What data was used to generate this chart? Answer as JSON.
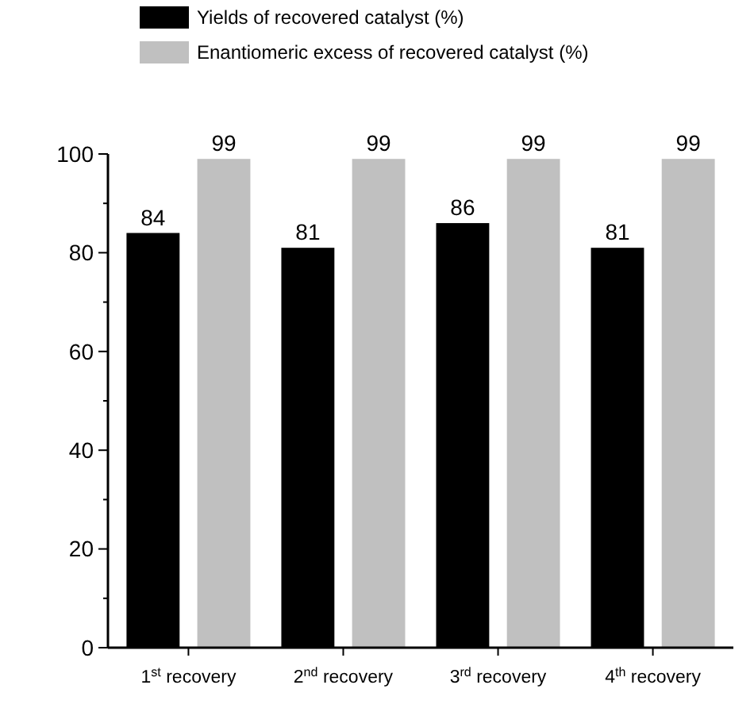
{
  "chart_data": {
    "type": "bar",
    "categories": [
      "1$^{st}$ recovery",
      "2$^{nd}$ recovery",
      "3$^{rd}$ recovery",
      "4$^{th}$ recovery"
    ],
    "series": [
      {
        "name": "Yields of recovered catalyst (%)",
        "color": "#000000",
        "values": [
          84,
          81,
          86,
          81
        ]
      },
      {
        "name": "Enantiomeric excess of recovered catalyst (%)",
        "color": "#c0c0c0",
        "values": [
          99,
          99,
          99,
          99
        ]
      }
    ],
    "ylim": [
      0,
      100
    ],
    "yticks": [
      0,
      {
        "value": 10,
        "label": null
      },
      20,
      {
        "value": 30,
        "label": null
      },
      40,
      {
        "value": 50,
        "label": null
      },
      60,
      {
        "value": 70,
        "label": null
      },
      80,
      {
        "value": 90,
        "label": null
      },
      100
    ],
    "data_labels": true,
    "legend": "top",
    "grid": false
  }
}
